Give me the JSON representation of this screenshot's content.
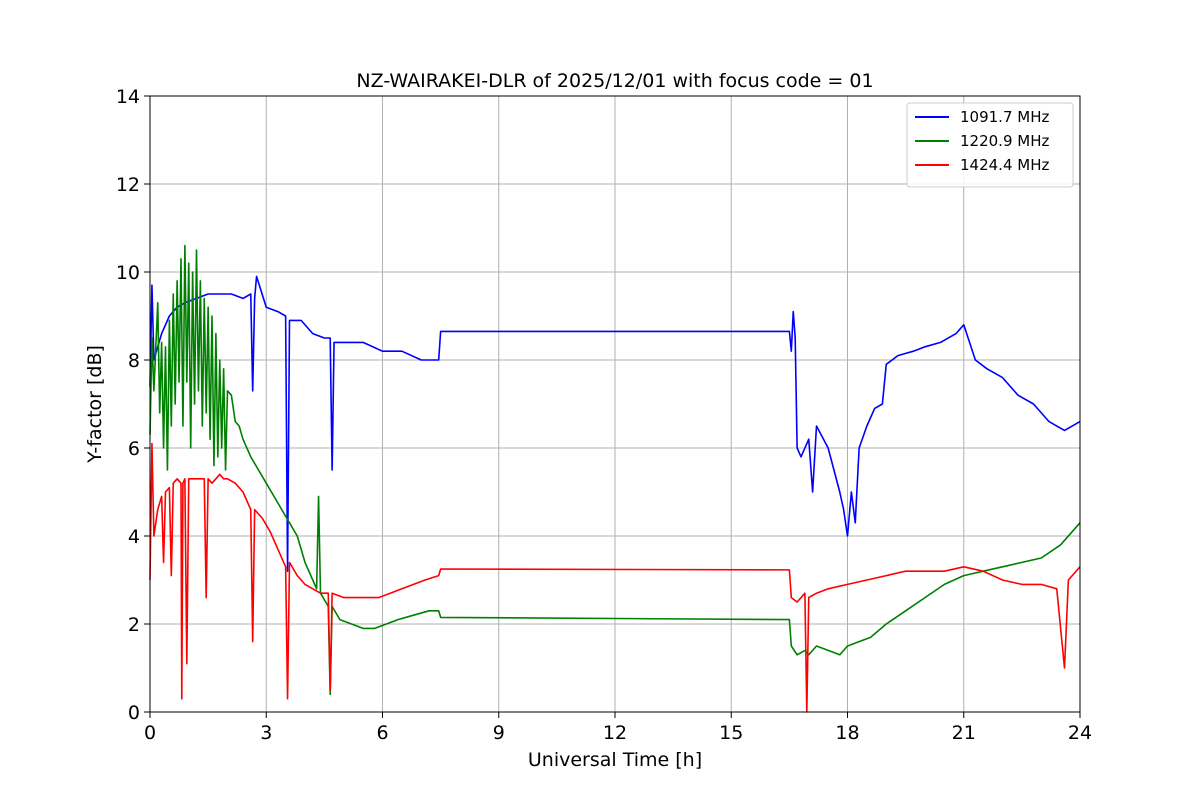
{
  "chart_data": {
    "type": "line",
    "title": "NZ-WAIRAKEI-DLR of 2025/12/01 with focus code = 01",
    "xlabel": "Universal Time [h]",
    "ylabel": "Y-factor [dB]",
    "xlim": [
      0,
      24
    ],
    "ylim": [
      0,
      14
    ],
    "x_ticks": [
      0,
      3,
      6,
      9,
      12,
      15,
      18,
      21,
      24
    ],
    "y_ticks": [
      0,
      2,
      4,
      6,
      8,
      10,
      12,
      14
    ],
    "grid": true,
    "legend_position": "top-right",
    "series": [
      {
        "name": "1091.7 MHz",
        "color": "#0000ff",
        "points": [
          [
            0,
            7.4
          ],
          [
            0.05,
            9.7
          ],
          [
            0.1,
            8.0
          ],
          [
            0.2,
            8.3
          ],
          [
            0.3,
            8.6
          ],
          [
            0.5,
            9.0
          ],
          [
            0.7,
            9.2
          ],
          [
            0.9,
            9.3
          ],
          [
            1.2,
            9.4
          ],
          [
            1.5,
            9.5
          ],
          [
            1.8,
            9.5
          ],
          [
            2.1,
            9.5
          ],
          [
            2.4,
            9.4
          ],
          [
            2.6,
            9.5
          ],
          [
            2.65,
            7.3
          ],
          [
            2.7,
            9.4
          ],
          [
            2.75,
            9.9
          ],
          [
            3.0,
            9.2
          ],
          [
            3.3,
            9.1
          ],
          [
            3.5,
            9.0
          ],
          [
            3.55,
            3.2
          ],
          [
            3.6,
            8.9
          ],
          [
            3.9,
            8.9
          ],
          [
            4.2,
            8.6
          ],
          [
            4.5,
            8.5
          ],
          [
            4.65,
            8.5
          ],
          [
            4.7,
            5.5
          ],
          [
            4.75,
            8.4
          ],
          [
            5.0,
            8.4
          ],
          [
            5.5,
            8.4
          ],
          [
            6.0,
            8.2
          ],
          [
            6.5,
            8.2
          ],
          [
            7.0,
            8.0
          ],
          [
            7.45,
            8.0
          ],
          [
            7.5,
            8.65
          ],
          [
            16.5,
            8.65
          ],
          [
            16.55,
            8.2
          ],
          [
            16.6,
            9.1
          ],
          [
            16.65,
            8.5
          ],
          [
            16.7,
            6.0
          ],
          [
            16.8,
            5.8
          ],
          [
            17.0,
            6.2
          ],
          [
            17.1,
            5.0
          ],
          [
            17.2,
            6.5
          ],
          [
            17.5,
            6.0
          ],
          [
            17.8,
            5.0
          ],
          [
            17.9,
            4.6
          ],
          [
            18.0,
            4.0
          ],
          [
            18.1,
            5.0
          ],
          [
            18.2,
            4.3
          ],
          [
            18.3,
            6.0
          ],
          [
            18.5,
            6.5
          ],
          [
            18.7,
            6.9
          ],
          [
            18.9,
            7.0
          ],
          [
            19.0,
            7.9
          ],
          [
            19.3,
            8.1
          ],
          [
            19.7,
            8.2
          ],
          [
            20.0,
            8.3
          ],
          [
            20.4,
            8.4
          ],
          [
            20.8,
            8.6
          ],
          [
            21.0,
            8.8
          ],
          [
            21.3,
            8.0
          ],
          [
            21.6,
            7.8
          ],
          [
            22.0,
            7.6
          ],
          [
            22.4,
            7.2
          ],
          [
            22.8,
            7.0
          ],
          [
            23.2,
            6.6
          ],
          [
            23.6,
            6.4
          ],
          [
            24.0,
            6.6
          ]
        ]
      },
      {
        "name": "1220.9 MHz",
        "color": "#008000",
        "points": [
          [
            0,
            6.3
          ],
          [
            0.05,
            8.5
          ],
          [
            0.1,
            7.3
          ],
          [
            0.2,
            9.3
          ],
          [
            0.25,
            6.8
          ],
          [
            0.3,
            8.4
          ],
          [
            0.35,
            6.0
          ],
          [
            0.4,
            8.3
          ],
          [
            0.45,
            5.5
          ],
          [
            0.5,
            8.9
          ],
          [
            0.55,
            6.5
          ],
          [
            0.6,
            9.5
          ],
          [
            0.65,
            7.0
          ],
          [
            0.7,
            9.8
          ],
          [
            0.75,
            7.5
          ],
          [
            0.8,
            10.3
          ],
          [
            0.85,
            6.5
          ],
          [
            0.9,
            10.6
          ],
          [
            0.95,
            7.5
          ],
          [
            1.0,
            10.2
          ],
          [
            1.05,
            6.0
          ],
          [
            1.1,
            10.0
          ],
          [
            1.15,
            7.0
          ],
          [
            1.2,
            10.5
          ],
          [
            1.25,
            7.3
          ],
          [
            1.3,
            9.8
          ],
          [
            1.35,
            6.5
          ],
          [
            1.4,
            9.4
          ],
          [
            1.45,
            6.8
          ],
          [
            1.5,
            9.2
          ],
          [
            1.55,
            6.2
          ],
          [
            1.6,
            9.0
          ],
          [
            1.65,
            5.6
          ],
          [
            1.7,
            8.6
          ],
          [
            1.75,
            5.8
          ],
          [
            1.8,
            8.0
          ],
          [
            1.85,
            6.0
          ],
          [
            1.9,
            7.8
          ],
          [
            1.95,
            5.5
          ],
          [
            2.0,
            7.3
          ],
          [
            2.1,
            7.2
          ],
          [
            2.2,
            6.6
          ],
          [
            2.3,
            6.5
          ],
          [
            2.4,
            6.2
          ],
          [
            2.5,
            6.0
          ],
          [
            2.6,
            5.8
          ],
          [
            2.8,
            5.5
          ],
          [
            3.0,
            5.2
          ],
          [
            3.2,
            4.9
          ],
          [
            3.4,
            4.6
          ],
          [
            3.6,
            4.3
          ],
          [
            3.8,
            4.0
          ],
          [
            4.0,
            3.4
          ],
          [
            4.2,
            3.0
          ],
          [
            4.3,
            2.8
          ],
          [
            4.35,
            4.9
          ],
          [
            4.4,
            2.7
          ],
          [
            4.6,
            2.4
          ],
          [
            4.65,
            0.4
          ],
          [
            4.7,
            2.4
          ],
          [
            4.9,
            2.1
          ],
          [
            5.2,
            2.0
          ],
          [
            5.5,
            1.9
          ],
          [
            5.8,
            1.9
          ],
          [
            6.1,
            2.0
          ],
          [
            6.4,
            2.1
          ],
          [
            6.8,
            2.2
          ],
          [
            7.2,
            2.3
          ],
          [
            7.45,
            2.3
          ],
          [
            7.5,
            2.15
          ],
          [
            16.5,
            2.1
          ],
          [
            16.55,
            1.5
          ],
          [
            16.7,
            1.3
          ],
          [
            16.9,
            1.4
          ],
          [
            17.0,
            1.3
          ],
          [
            17.2,
            1.5
          ],
          [
            17.5,
            1.4
          ],
          [
            17.8,
            1.3
          ],
          [
            18.0,
            1.5
          ],
          [
            18.3,
            1.6
          ],
          [
            18.6,
            1.7
          ],
          [
            19.0,
            2.0
          ],
          [
            19.5,
            2.3
          ],
          [
            20.0,
            2.6
          ],
          [
            20.5,
            2.9
          ],
          [
            21.0,
            3.1
          ],
          [
            21.5,
            3.2
          ],
          [
            22.0,
            3.3
          ],
          [
            22.5,
            3.4
          ],
          [
            23.0,
            3.5
          ],
          [
            23.5,
            3.8
          ],
          [
            24.0,
            4.3
          ]
        ]
      },
      {
        "name": "1424.4 MHz",
        "color": "#ff0000",
        "points": [
          [
            0,
            3.0
          ],
          [
            0.05,
            6.1
          ],
          [
            0.1,
            4.0
          ],
          [
            0.2,
            4.6
          ],
          [
            0.3,
            4.9
          ],
          [
            0.35,
            3.4
          ],
          [
            0.4,
            5.0
          ],
          [
            0.5,
            5.1
          ],
          [
            0.55,
            3.1
          ],
          [
            0.6,
            5.2
          ],
          [
            0.7,
            5.3
          ],
          [
            0.8,
            5.2
          ],
          [
            0.82,
            0.3
          ],
          [
            0.85,
            5.2
          ],
          [
            0.9,
            5.3
          ],
          [
            0.95,
            1.1
          ],
          [
            1.0,
            5.3
          ],
          [
            1.2,
            5.3
          ],
          [
            1.4,
            5.3
          ],
          [
            1.45,
            2.6
          ],
          [
            1.5,
            5.3
          ],
          [
            1.6,
            5.2
          ],
          [
            1.7,
            5.3
          ],
          [
            1.8,
            5.4
          ],
          [
            1.9,
            5.3
          ],
          [
            2.0,
            5.3
          ],
          [
            2.2,
            5.2
          ],
          [
            2.4,
            5.0
          ],
          [
            2.6,
            4.6
          ],
          [
            2.65,
            1.6
          ],
          [
            2.7,
            4.6
          ],
          [
            2.9,
            4.4
          ],
          [
            3.1,
            4.1
          ],
          [
            3.3,
            3.7
          ],
          [
            3.5,
            3.3
          ],
          [
            3.55,
            0.3
          ],
          [
            3.6,
            3.4
          ],
          [
            3.8,
            3.1
          ],
          [
            4.0,
            2.9
          ],
          [
            4.2,
            2.8
          ],
          [
            4.4,
            2.7
          ],
          [
            4.6,
            2.7
          ],
          [
            4.65,
            0.5
          ],
          [
            4.7,
            2.7
          ],
          [
            5.0,
            2.6
          ],
          [
            5.3,
            2.6
          ],
          [
            5.6,
            2.6
          ],
          [
            5.9,
            2.6
          ],
          [
            6.2,
            2.7
          ],
          [
            6.5,
            2.8
          ],
          [
            6.8,
            2.9
          ],
          [
            7.1,
            3.0
          ],
          [
            7.45,
            3.1
          ],
          [
            7.5,
            3.25
          ],
          [
            16.5,
            3.23
          ],
          [
            16.55,
            2.6
          ],
          [
            16.7,
            2.5
          ],
          [
            16.8,
            2.6
          ],
          [
            16.9,
            2.7
          ],
          [
            16.95,
            0.0
          ],
          [
            17.0,
            2.6
          ],
          [
            17.2,
            2.7
          ],
          [
            17.5,
            2.8
          ],
          [
            18.0,
            2.9
          ],
          [
            18.5,
            3.0
          ],
          [
            19.0,
            3.1
          ],
          [
            19.5,
            3.2
          ],
          [
            20.0,
            3.2
          ],
          [
            20.5,
            3.2
          ],
          [
            21.0,
            3.3
          ],
          [
            21.5,
            3.2
          ],
          [
            22.0,
            3.0
          ],
          [
            22.5,
            2.9
          ],
          [
            23.0,
            2.9
          ],
          [
            23.4,
            2.8
          ],
          [
            23.6,
            1.0
          ],
          [
            23.7,
            3.0
          ],
          [
            24.0,
            3.3
          ]
        ]
      }
    ]
  }
}
